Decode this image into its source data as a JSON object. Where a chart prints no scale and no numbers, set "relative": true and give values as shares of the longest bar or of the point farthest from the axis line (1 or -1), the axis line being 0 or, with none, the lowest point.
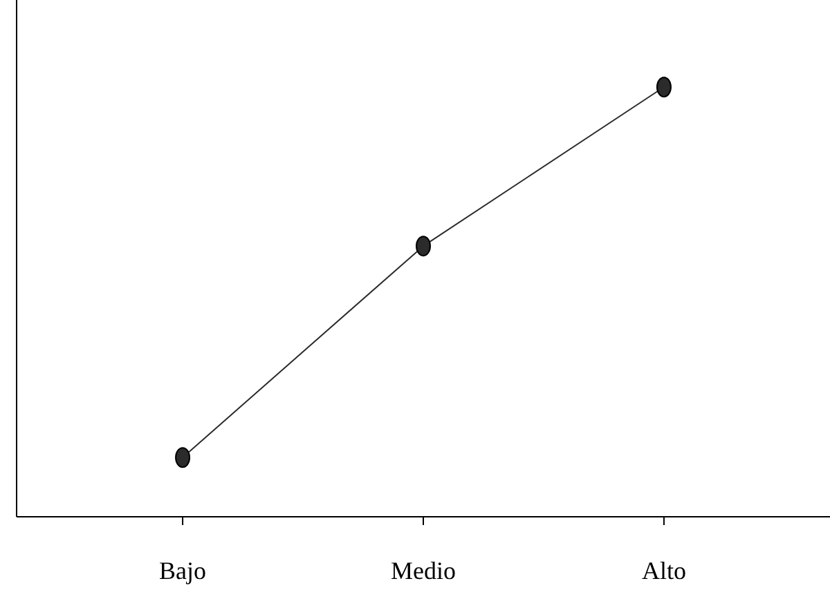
{
  "chart_data": {
    "type": "line",
    "relative": true,
    "categories": [
      "Bajo",
      "Medio",
      "Alto"
    ],
    "series": [
      {
        "color": "#2b2b2b",
        "values": [
          0.138,
          0.63,
          1
        ]
      }
    ],
    "marker": "circle",
    "line_style": "solid"
  }
}
